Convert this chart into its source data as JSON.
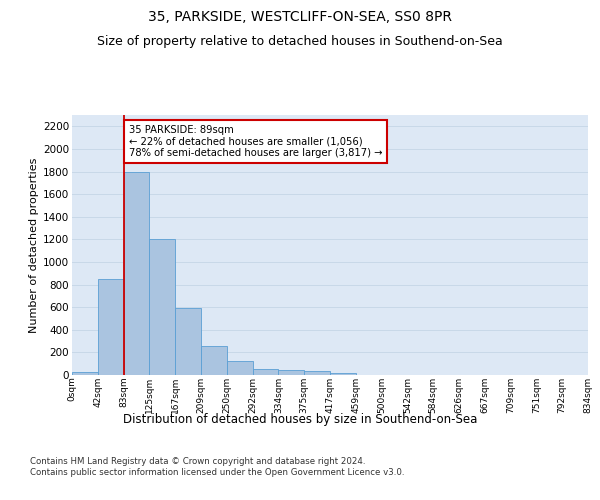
{
  "title": "35, PARKSIDE, WESTCLIFF-ON-SEA, SS0 8PR",
  "subtitle": "Size of property relative to detached houses in Southend-on-Sea",
  "xlabel": "Distribution of detached houses by size in Southend-on-Sea",
  "ylabel": "Number of detached properties",
  "bar_values": [
    25,
    845,
    1800,
    1200,
    590,
    260,
    125,
    50,
    45,
    32,
    15,
    0,
    0,
    0,
    0,
    0,
    0,
    0,
    0,
    0
  ],
  "bar_labels": [
    "0sqm",
    "42sqm",
    "83sqm",
    "125sqm",
    "167sqm",
    "209sqm",
    "250sqm",
    "292sqm",
    "334sqm",
    "375sqm",
    "417sqm",
    "459sqm",
    "500sqm",
    "542sqm",
    "584sqm",
    "626sqm",
    "667sqm",
    "709sqm",
    "751sqm",
    "792sqm",
    "834sqm"
  ],
  "n_bars": 20,
  "bar_color": "#aac4e0",
  "bar_edge_color": "#5a9fd4",
  "grid_color": "#c8d8e8",
  "background_color": "#dde8f5",
  "property_line_x": 2,
  "property_line_color": "#cc0000",
  "annotation_text": "35 PARKSIDE: 89sqm\n← 22% of detached houses are smaller (1,056)\n78% of semi-detached houses are larger (3,817) →",
  "annotation_box_color": "#cc0000",
  "ylim": [
    0,
    2300
  ],
  "yticks": [
    0,
    200,
    400,
    600,
    800,
    1000,
    1200,
    1400,
    1600,
    1800,
    2000,
    2200
  ],
  "footnote": "Contains HM Land Registry data © Crown copyright and database right 2024.\nContains public sector information licensed under the Open Government Licence v3.0.",
  "title_fontsize": 10,
  "subtitle_fontsize": 9,
  "xlabel_fontsize": 8.5,
  "ylabel_fontsize": 8
}
